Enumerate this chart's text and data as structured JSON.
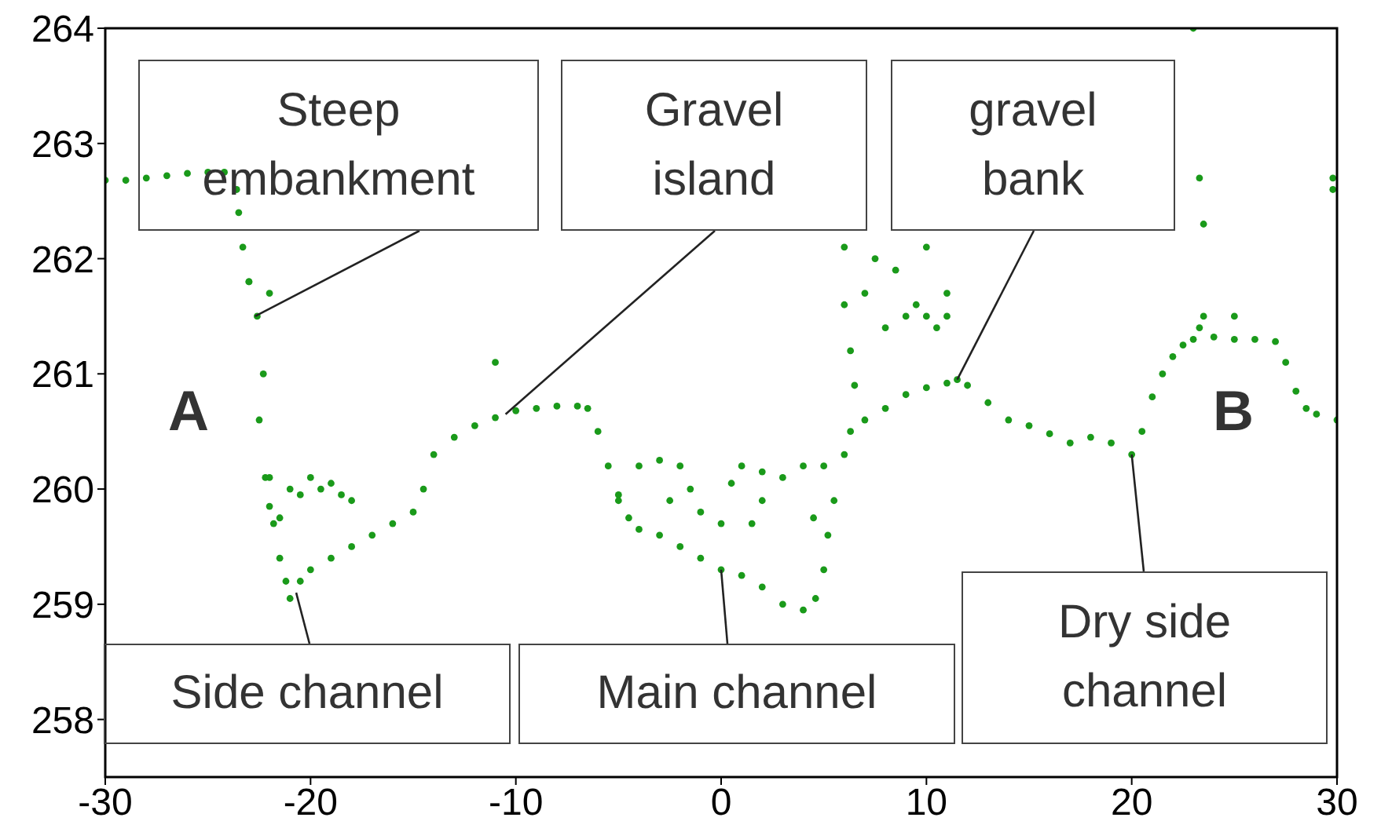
{
  "chart_data": {
    "type": "scatter",
    "xlim": [
      -30,
      30
    ],
    "ylim": [
      257.5,
      264
    ],
    "xticks": [
      -30,
      -20,
      -10,
      0,
      10,
      20,
      30
    ],
    "yticks": [
      258,
      259,
      260,
      261,
      262,
      263,
      264
    ],
    "grid": false,
    "legend": false,
    "marker": "circle",
    "series": [
      {
        "color": "#1a9a1a",
        "x": [
          -30,
          -29,
          -28,
          -27,
          -26,
          -25,
          -24.2,
          -23.6,
          -23.5,
          -23.3,
          -23,
          -22.6,
          -22.3,
          -22.5,
          -22.2,
          -21.8,
          -21.5,
          -21.2,
          -21,
          -20.5,
          -20,
          -19,
          -18,
          -17,
          -16,
          -15,
          -14.5,
          -14,
          -13,
          -12,
          -11,
          -10,
          -9,
          -8,
          -7,
          -6.5,
          -6,
          -5.5,
          -5,
          -4.5,
          -4,
          -3,
          -2,
          -1,
          0,
          1,
          2,
          3,
          4,
          4.6,
          5,
          5.2,
          5.5,
          6,
          6.3,
          7,
          8,
          9,
          10,
          11,
          11.5,
          12,
          13,
          14,
          15,
          16,
          17,
          18,
          19,
          20,
          20.5,
          21,
          21.5,
          22,
          22.5,
          23,
          24,
          25,
          26,
          27,
          27.5,
          28,
          28.5,
          29,
          30,
          -22,
          -21,
          -20,
          -19.5,
          -19,
          -18.5,
          -18,
          -22,
          -20.5,
          -21.5,
          -5,
          -4,
          -3,
          -2,
          -1.5,
          -1,
          0,
          1,
          2,
          3,
          4,
          5,
          0.5,
          2,
          4.5,
          1.5,
          -2.5,
          6,
          6,
          7,
          7.5,
          8,
          8.5,
          9,
          9.5,
          10,
          10.5,
          11,
          11,
          10,
          6.5,
          6.3,
          23,
          23.3,
          23.5,
          23.5,
          23.3,
          25,
          29.8,
          29.8,
          -11,
          -23,
          -22
        ],
        "values": [
          262.68,
          262.68,
          262.7,
          262.72,
          262.74,
          262.75,
          262.75,
          262.6,
          262.4,
          262.1,
          261.8,
          261.5,
          261,
          260.6,
          260.1,
          259.7,
          259.4,
          259.2,
          259.05,
          259.2,
          259.3,
          259.4,
          259.5,
          259.6,
          259.7,
          259.8,
          260,
          260.3,
          260.45,
          260.55,
          260.62,
          260.68,
          260.7,
          260.72,
          260.72,
          260.7,
          260.5,
          260.2,
          259.95,
          259.75,
          259.65,
          259.6,
          259.5,
          259.4,
          259.3,
          259.25,
          259.15,
          259,
          258.95,
          259.05,
          259.3,
          259.6,
          259.9,
          260.3,
          260.5,
          260.6,
          260.7,
          260.82,
          260.88,
          260.92,
          260.95,
          260.9,
          260.75,
          260.6,
          260.55,
          260.48,
          260.4,
          260.45,
          260.4,
          260.3,
          260.5,
          260.8,
          261,
          261.15,
          261.25,
          261.3,
          261.32,
          261.3,
          261.3,
          261.28,
          261.1,
          260.85,
          260.7,
          260.65,
          260.6,
          260.1,
          260,
          260.1,
          260,
          260.05,
          259.95,
          259.9,
          259.85,
          259.95,
          259.75,
          259.9,
          260.2,
          260.25,
          260.2,
          260,
          259.8,
          259.7,
          260.2,
          260.15,
          260.1,
          260.2,
          260.2,
          260.05,
          259.9,
          259.75,
          259.7,
          259.9,
          262.1,
          261.6,
          261.7,
          262,
          261.4,
          261.9,
          261.5,
          261.6,
          261.5,
          261.4,
          261.5,
          261.7,
          262.1,
          260.9,
          261.2,
          264,
          262.7,
          262.3,
          261.5,
          261.4,
          261.5,
          262.7,
          262.6,
          261.1,
          261.8,
          261.7
        ]
      }
    ],
    "annotations": [
      {
        "text": "Steep embankment",
        "x": -22.7,
        "y": 261.5
      },
      {
        "text": "Gravel island",
        "x": -10.5,
        "y": 260.65
      },
      {
        "text": "gravel bank",
        "x": 11.5,
        "y": 260.95
      },
      {
        "text": "Side channel",
        "x": -20.7,
        "y": 259.1
      },
      {
        "text": "Main channel",
        "x": 0,
        "y": 259.3
      },
      {
        "text": "Dry side channel",
        "x": 20,
        "y": 260.3
      },
      "A",
      "B"
    ]
  }
}
